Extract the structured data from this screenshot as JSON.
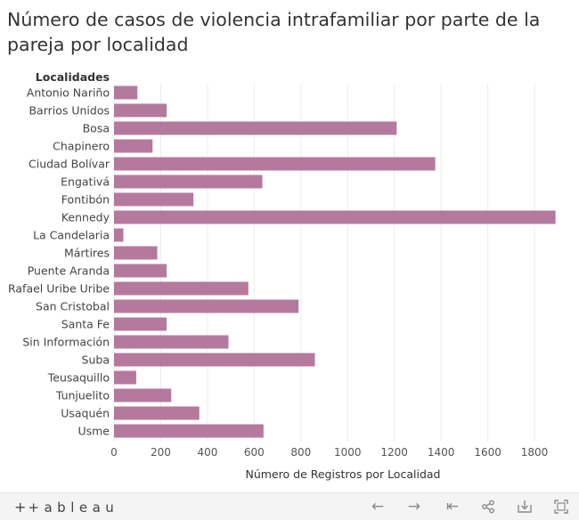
{
  "title": "Número de casos de violencia intrafamiliar por parte de la pareja por localidad",
  "toolbar": {
    "logo_text": "+ableau",
    "icons": [
      "undo-icon",
      "redo-icon",
      "revert-icon",
      "share-icon",
      "download-icon",
      "fullscreen-icon"
    ]
  },
  "chart_data": {
    "type": "bar",
    "orientation": "horizontal",
    "title": "Número de casos de violencia intrafamiliar por parte de la pareja por localidad",
    "ylabel": "Localidades",
    "xlabel": "Número de Registros por Localidad",
    "xlim": [
      0,
      1960
    ],
    "xticks": [
      0,
      200,
      400,
      600,
      800,
      1000,
      1200,
      1400,
      1600,
      1800
    ],
    "grid": true,
    "bar_color": "#b5799e",
    "categories": [
      "Antonio Nariño",
      "Barrios Unidos",
      "Bosa",
      "Chapinero",
      "Ciudad Bolívar",
      "Engativá",
      "Fontibón",
      "Kennedy",
      "La Candelaria",
      "Mártires",
      "Puente Aranda",
      "Rafael Uribe Uribe",
      "San Cristobal",
      "Santa Fe",
      "Sin Información",
      "Suba",
      "Teusaquillo",
      "Tunjuelito",
      "Usaquén",
      "Usme"
    ],
    "values": [
      100,
      225,
      1210,
      165,
      1375,
      635,
      340,
      1890,
      40,
      185,
      225,
      575,
      790,
      225,
      490,
      860,
      95,
      245,
      365,
      640
    ]
  }
}
